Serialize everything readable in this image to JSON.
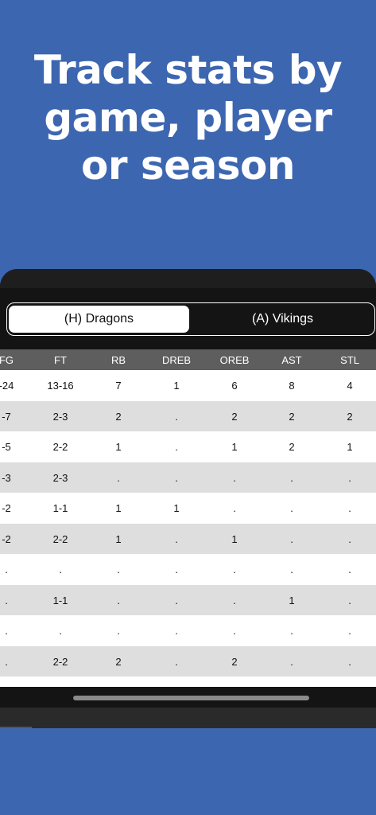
{
  "headline": {
    "line1": "Track stats by",
    "line2": "game, player",
    "line3": "or season"
  },
  "teams": {
    "home": "(H) Dragons",
    "away": "(A) Vikings",
    "selected": "home"
  },
  "table": {
    "columns": [
      "FG",
      "FT",
      "RB",
      "DREB",
      "OREB",
      "AST",
      "STL"
    ],
    "rows": [
      [
        "-24",
        "13-16",
        "7",
        "1",
        "6",
        "8",
        "4"
      ],
      [
        "-7",
        "2-3",
        "2",
        ".",
        "2",
        "2",
        "2"
      ],
      [
        "-5",
        "2-2",
        "1",
        ".",
        "1",
        "2",
        "1"
      ],
      [
        "-3",
        "2-3",
        ".",
        ".",
        ".",
        ".",
        "."
      ],
      [
        "-2",
        "1-1",
        "1",
        "1",
        ".",
        ".",
        "."
      ],
      [
        "-2",
        "2-2",
        "1",
        ".",
        "1",
        ".",
        "."
      ],
      [
        ".",
        ".",
        ".",
        ".",
        ".",
        ".",
        "."
      ],
      [
        ".",
        "1-1",
        ".",
        ".",
        ".",
        "1",
        "."
      ],
      [
        ".",
        ".",
        ".",
        ".",
        ".",
        ".",
        "."
      ],
      [
        ".",
        "2-2",
        "2",
        ".",
        "2",
        ".",
        "."
      ],
      [
        ".",
        ".",
        ".",
        ".",
        ".",
        ".",
        "."
      ]
    ]
  }
}
